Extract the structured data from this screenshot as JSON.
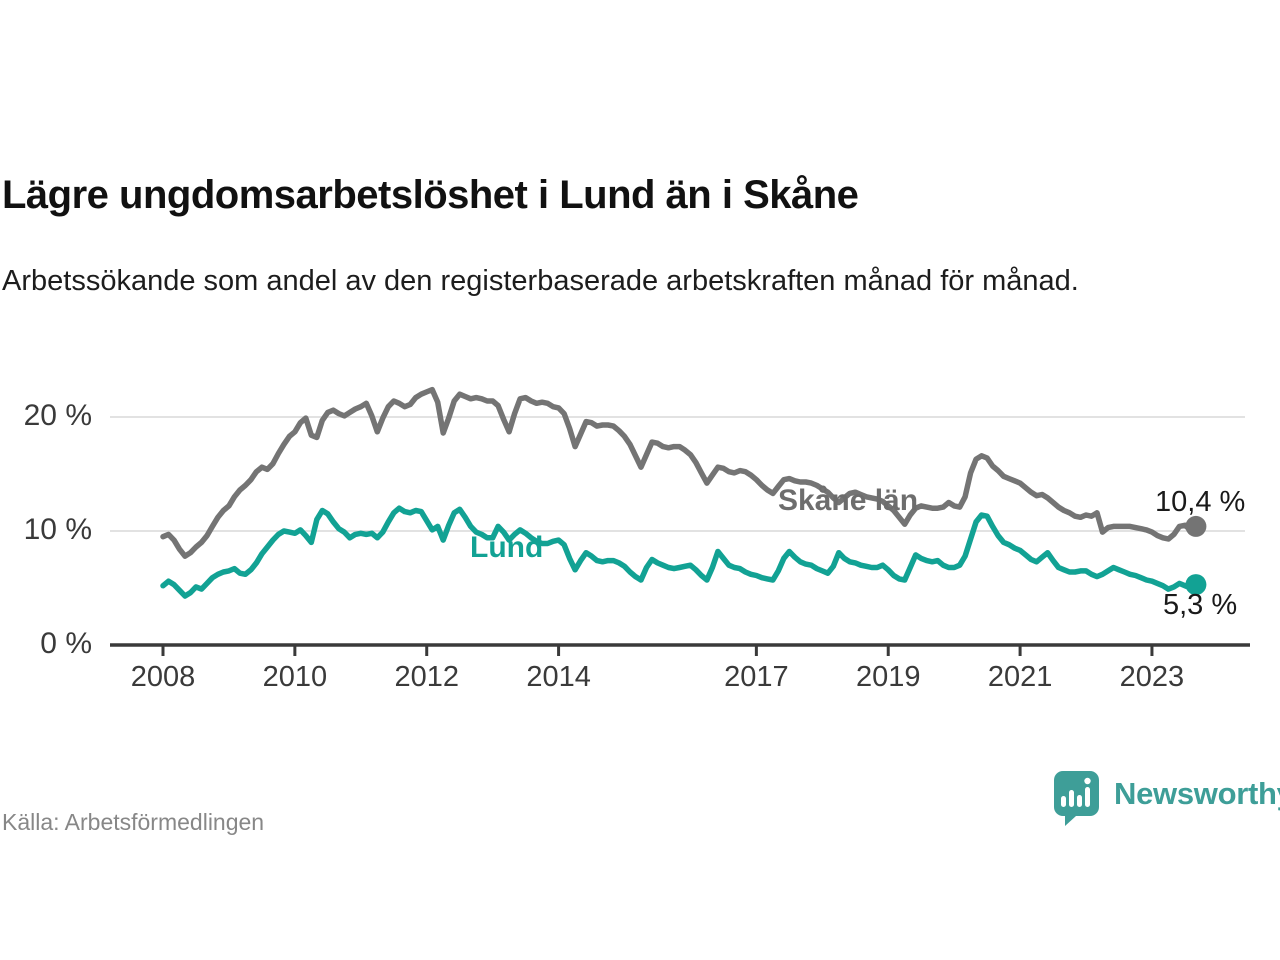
{
  "header": {
    "title": "Lägre ungdomsarbetslöshet i Lund än i Skåne",
    "subtitle": "Arbetssökande som andel av den registerbaserade arbetskraften månad för månad."
  },
  "chart_data": {
    "type": "line",
    "frequency": "monthly",
    "x_start": "2008-01",
    "x_end": "2023-09",
    "ylim": [
      0,
      24
    ],
    "grid": "horizontal gridlines at 10 and 20, baseline at 0",
    "y_ticks": [
      {
        "value": 0,
        "label": "0 %"
      },
      {
        "value": 10,
        "label": "10 %"
      },
      {
        "value": 20,
        "label": "20 %"
      }
    ],
    "x_ticks": [
      {
        "year": 2008,
        "label": "2008"
      },
      {
        "year": 2010,
        "label": "2010"
      },
      {
        "year": 2012,
        "label": "2012"
      },
      {
        "year": 2014,
        "label": "2014"
      },
      {
        "year": 2017,
        "label": "2017"
      },
      {
        "year": 2019,
        "label": "2019"
      },
      {
        "year": 2021,
        "label": "2021"
      },
      {
        "year": 2023,
        "label": "2023"
      }
    ],
    "series": [
      {
        "name": "Skåne län",
        "color": "#747474",
        "end_label": "10,4 %",
        "end_value": 10.4,
        "values": [
          9.5,
          9.7,
          9.2,
          8.4,
          7.8,
          8.1,
          8.6,
          9.0,
          9.6,
          10.4,
          11.2,
          11.8,
          12.2,
          13.0,
          13.6,
          14.0,
          14.5,
          15.2,
          15.6,
          15.4,
          15.9,
          16.8,
          17.6,
          18.3,
          18.7,
          19.5,
          19.9,
          18.4,
          18.2,
          19.7,
          20.4,
          20.6,
          20.3,
          20.1,
          20.4,
          20.7,
          20.9,
          21.2,
          20.1,
          18.7,
          19.9,
          20.9,
          21.4,
          21.2,
          20.9,
          21.1,
          21.7,
          22.0,
          22.2,
          22.4,
          21.3,
          18.6,
          19.9,
          21.4,
          22.0,
          21.8,
          21.6,
          21.7,
          21.6,
          21.4,
          21.4,
          21.0,
          19.8,
          18.7,
          20.3,
          21.6,
          21.7,
          21.4,
          21.2,
          21.3,
          21.2,
          20.9,
          20.8,
          20.3,
          19.0,
          17.4,
          18.5,
          19.6,
          19.5,
          19.2,
          19.3,
          19.3,
          19.2,
          18.8,
          18.3,
          17.6,
          16.6,
          15.6,
          16.7,
          17.8,
          17.7,
          17.4,
          17.3,
          17.4,
          17.4,
          17.1,
          16.7,
          16.0,
          15.1,
          14.2,
          14.9,
          15.6,
          15.5,
          15.2,
          15.1,
          15.3,
          15.2,
          14.9,
          14.5,
          14.0,
          13.6,
          13.3,
          13.9,
          14.5,
          14.6,
          14.4,
          14.3,
          14.3,
          14.2,
          14.0,
          13.7,
          13.4,
          12.9,
          12.5,
          12.9,
          13.3,
          13.4,
          13.2,
          13.0,
          12.9,
          12.8,
          12.6,
          12.2,
          11.8,
          11.2,
          10.6,
          11.4,
          12.0,
          12.2,
          12.1,
          12.0,
          12.0,
          12.1,
          12.5,
          12.2,
          12.1,
          13.0,
          15.1,
          16.3,
          16.6,
          16.4,
          15.7,
          15.3,
          14.8,
          14.6,
          14.4,
          14.2,
          13.8,
          13.4,
          13.1,
          13.2,
          12.9,
          12.5,
          12.1,
          11.8,
          11.6,
          11.3,
          11.2,
          11.4,
          11.3,
          11.6,
          9.9,
          10.3,
          10.4,
          10.4,
          10.4,
          10.4,
          10.3,
          10.2,
          10.1,
          9.9,
          9.6,
          9.4,
          9.3,
          9.7,
          10.4,
          10.5,
          10.1,
          10.4
        ]
      },
      {
        "name": "Lund",
        "color": "#12a294",
        "end_label": "5,3 %",
        "end_value": 5.3,
        "values": [
          5.2,
          5.6,
          5.3,
          4.8,
          4.3,
          4.6,
          5.1,
          4.9,
          5.4,
          5.9,
          6.2,
          6.4,
          6.5,
          6.7,
          6.3,
          6.2,
          6.6,
          7.2,
          8.0,
          8.6,
          9.2,
          9.7,
          10.0,
          9.9,
          9.8,
          10.1,
          9.6,
          9.0,
          11.0,
          11.8,
          11.5,
          10.8,
          10.2,
          9.9,
          9.4,
          9.7,
          9.8,
          9.7,
          9.8,
          9.4,
          9.9,
          10.8,
          11.6,
          12.0,
          11.7,
          11.6,
          11.8,
          11.7,
          10.9,
          10.1,
          10.4,
          9.2,
          10.5,
          11.6,
          11.9,
          11.2,
          10.4,
          9.9,
          9.7,
          9.4,
          9.4,
          10.4,
          9.9,
          9.2,
          9.7,
          10.1,
          9.8,
          9.4,
          9.1,
          8.9,
          8.9,
          9.1,
          9.2,
          8.8,
          7.6,
          6.6,
          7.4,
          8.1,
          7.8,
          7.4,
          7.3,
          7.4,
          7.4,
          7.2,
          6.9,
          6.4,
          6.0,
          5.7,
          6.8,
          7.5,
          7.2,
          7.0,
          6.8,
          6.7,
          6.8,
          6.9,
          7.0,
          6.6,
          6.1,
          5.7,
          6.8,
          8.2,
          7.6,
          7.0,
          6.8,
          6.7,
          6.4,
          6.2,
          6.1,
          5.9,
          5.8,
          5.7,
          6.5,
          7.6,
          8.2,
          7.7,
          7.3,
          7.1,
          7.0,
          6.7,
          6.5,
          6.3,
          6.9,
          8.1,
          7.6,
          7.3,
          7.2,
          7.0,
          6.9,
          6.8,
          6.8,
          7.0,
          6.6,
          6.1,
          5.8,
          5.7,
          6.8,
          7.9,
          7.6,
          7.4,
          7.3,
          7.4,
          7.0,
          6.8,
          6.8,
          7.0,
          7.8,
          9.3,
          10.8,
          11.4,
          11.3,
          10.4,
          9.6,
          9.0,
          8.8,
          8.5,
          8.3,
          7.9,
          7.5,
          7.3,
          7.7,
          8.1,
          7.4,
          6.8,
          6.6,
          6.4,
          6.4,
          6.5,
          6.5,
          6.2,
          6.0,
          6.2,
          6.5,
          6.8,
          6.6,
          6.4,
          6.2,
          6.1,
          5.9,
          5.7,
          5.6,
          5.4,
          5.2,
          4.9,
          5.1,
          5.4,
          5.2,
          5.0,
          5.3
        ]
      }
    ],
    "colors": {
      "gridline": "#d9d9d9",
      "axis": "#3a3a3a",
      "skane_line": "#747474",
      "lund_line": "#12a294",
      "end_label_text": "#1a1a1a"
    }
  },
  "footer": {
    "source": "Källa: Arbetsförmedlingen",
    "logo_text": "Newsworthy",
    "logo_color": "#3e9e98"
  }
}
